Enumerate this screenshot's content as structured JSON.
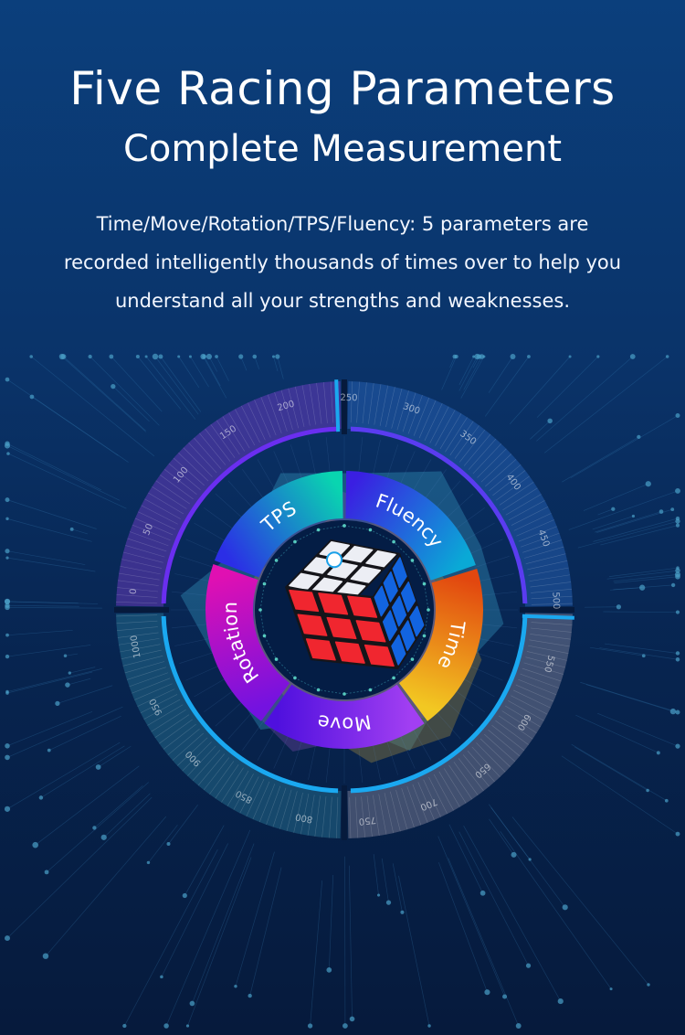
{
  "header": {
    "title": "Five Racing Parameters",
    "subtitle": "Complete Measurement"
  },
  "description": {
    "lines": [
      "Time/Move/Rotation/TPS/Fluency: 5 parameters are",
      "recorded intelligently thousands of times over to help you",
      "understand all your strengths and weaknesses."
    ]
  },
  "dial": {
    "segments": [
      {
        "label": "TPS",
        "from": "#2b2ee6",
        "to": "#09d5b0"
      },
      {
        "label": "Fluency",
        "from": "#3a1fe2",
        "to": "#0aa9d6"
      },
      {
        "label": "Time",
        "from": "#e2470f",
        "to": "#f2c822"
      },
      {
        "label": "Move",
        "from": "#a23ff2",
        "to": "#4f10de"
      },
      {
        "label": "Rotation",
        "from": "#7412e0",
        "to": "#e010b2"
      }
    ],
    "scale_labels": [
      "0",
      "50",
      "100",
      "150",
      "200",
      "250",
      "300",
      "350",
      "400",
      "450",
      "500",
      "550",
      "600",
      "650",
      "700",
      "750",
      "800",
      "850",
      "900",
      "950",
      "1000"
    ],
    "quadrant_colors": [
      "#7a3fd0",
      "#2a68c0",
      "#8a8aa0",
      "#2b7a98"
    ],
    "accent_color": "#1aa8f0"
  },
  "cube": {
    "brand_icon": "gan-logo-icon",
    "colors": {
      "top": "#eceef4",
      "left": "#f0262f",
      "right": "#1264e0"
    }
  }
}
